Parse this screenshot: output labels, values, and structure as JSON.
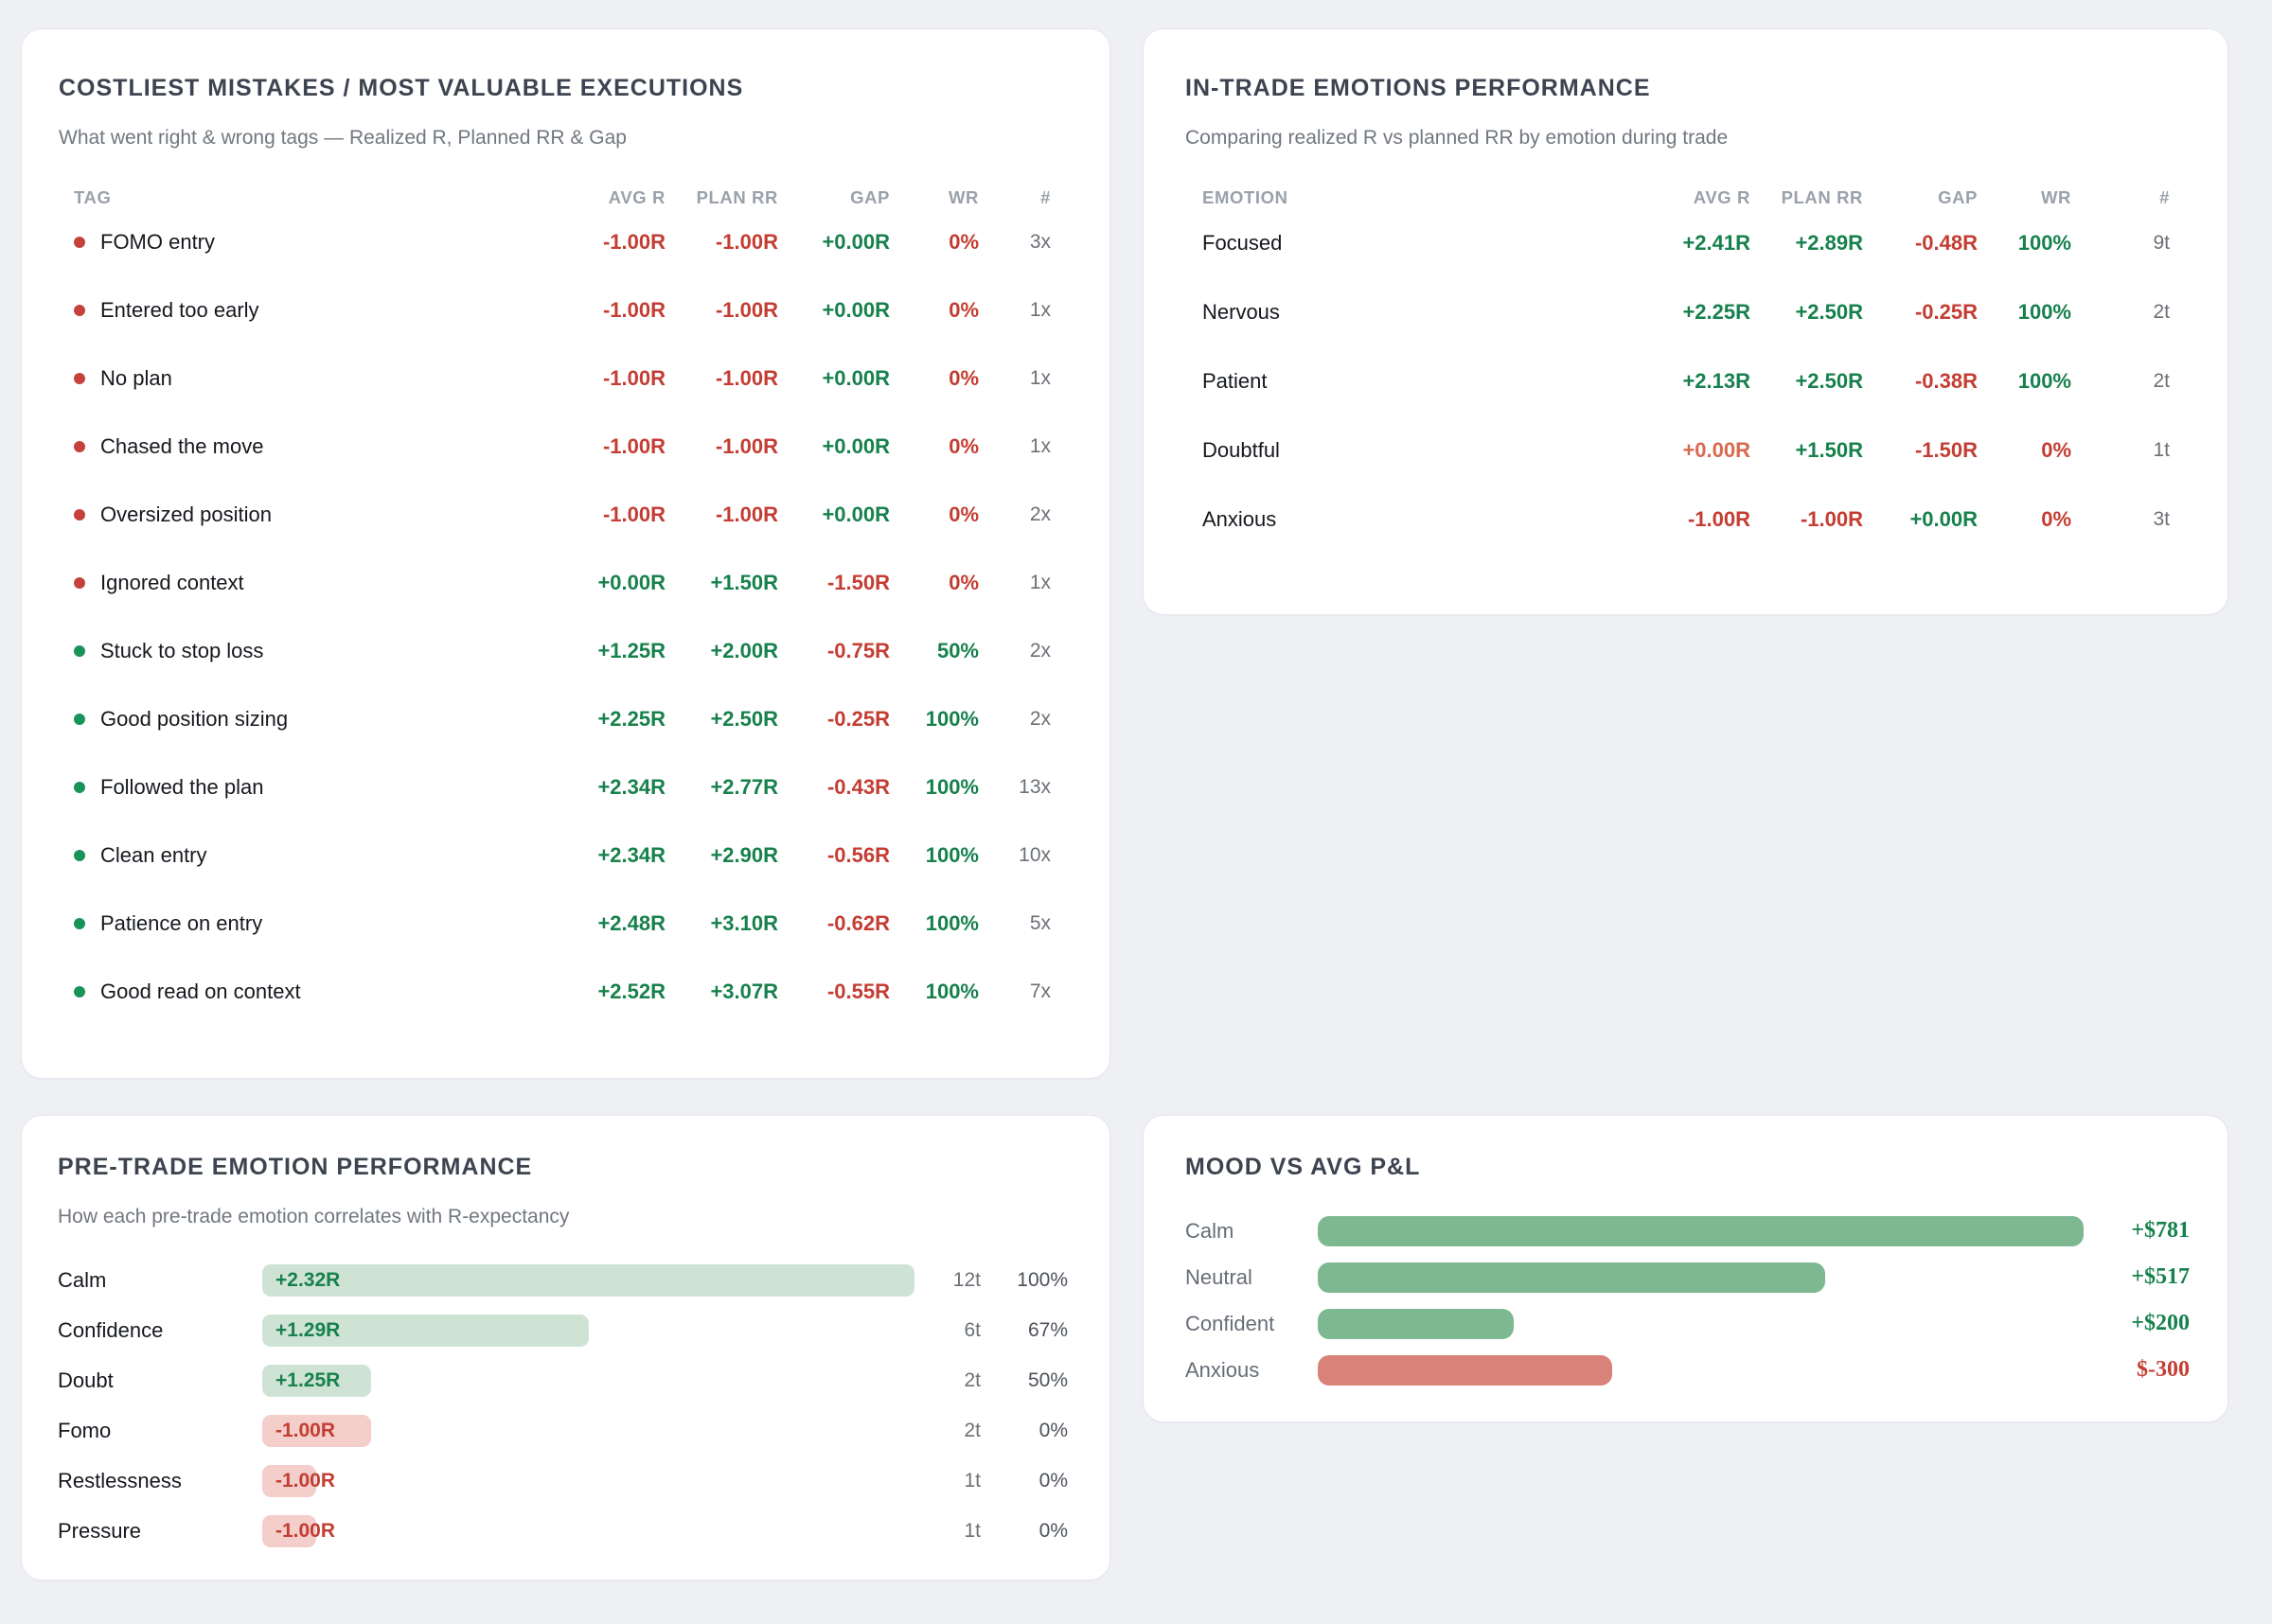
{
  "colors": {
    "page_bg": "#eef0f4",
    "panel_bg": "#ffffff",
    "red": "#c43d32",
    "green": "#17814c",
    "soft_red": "#d9694f",
    "red_dot": "#c5423c",
    "green_dot": "#18935a",
    "bar_light_green": "#cfe3d5",
    "bar_light_red": "#f3cecb",
    "bar_green": "#7eb891",
    "bar_red": "#d9827a"
  },
  "panels": {
    "mistakes": {
      "title": "COSTLIEST MISTAKES / MOST VALUABLE EXECUTIONS",
      "subtitle": "What went right & wrong tags — Realized R, Planned RR & Gap",
      "columns": [
        "TAG",
        "AVG R",
        "PLAN RR",
        "GAP",
        "WR",
        "#"
      ],
      "rows": [
        {
          "tag": "FOMO entry",
          "dot": "red",
          "avg": "-1.00R",
          "avg_c": "red",
          "plan": "-1.00R",
          "plan_c": "red",
          "gap": "+0.00R",
          "gap_c": "green",
          "wr": "0%",
          "wr_c": "red",
          "count": "3x"
        },
        {
          "tag": "Entered too early",
          "dot": "red",
          "avg": "-1.00R",
          "avg_c": "red",
          "plan": "-1.00R",
          "plan_c": "red",
          "gap": "+0.00R",
          "gap_c": "green",
          "wr": "0%",
          "wr_c": "red",
          "count": "1x"
        },
        {
          "tag": "No plan",
          "dot": "red",
          "avg": "-1.00R",
          "avg_c": "red",
          "plan": "-1.00R",
          "plan_c": "red",
          "gap": "+0.00R",
          "gap_c": "green",
          "wr": "0%",
          "wr_c": "red",
          "count": "1x"
        },
        {
          "tag": "Chased the move",
          "dot": "red",
          "avg": "-1.00R",
          "avg_c": "red",
          "plan": "-1.00R",
          "plan_c": "red",
          "gap": "+0.00R",
          "gap_c": "green",
          "wr": "0%",
          "wr_c": "red",
          "count": "1x"
        },
        {
          "tag": "Oversized position",
          "dot": "red",
          "avg": "-1.00R",
          "avg_c": "red",
          "plan": "-1.00R",
          "plan_c": "red",
          "gap": "+0.00R",
          "gap_c": "green",
          "wr": "0%",
          "wr_c": "red",
          "count": "2x"
        },
        {
          "tag": "Ignored context",
          "dot": "red",
          "avg": "+0.00R",
          "avg_c": "green",
          "plan": "+1.50R",
          "plan_c": "green",
          "gap": "-1.50R",
          "gap_c": "red",
          "wr": "0%",
          "wr_c": "red",
          "count": "1x"
        },
        {
          "tag": "Stuck to stop loss",
          "dot": "green",
          "avg": "+1.25R",
          "avg_c": "green",
          "plan": "+2.00R",
          "plan_c": "green",
          "gap": "-0.75R",
          "gap_c": "red",
          "wr": "50%",
          "wr_c": "green",
          "count": "2x"
        },
        {
          "tag": "Good position sizing",
          "dot": "green",
          "avg": "+2.25R",
          "avg_c": "green",
          "plan": "+2.50R",
          "plan_c": "green",
          "gap": "-0.25R",
          "gap_c": "red",
          "wr": "100%",
          "wr_c": "green",
          "count": "2x"
        },
        {
          "tag": "Followed the plan",
          "dot": "green",
          "avg": "+2.34R",
          "avg_c": "green",
          "plan": "+2.77R",
          "plan_c": "green",
          "gap": "-0.43R",
          "gap_c": "red",
          "wr": "100%",
          "wr_c": "green",
          "count": "13x"
        },
        {
          "tag": "Clean entry",
          "dot": "green",
          "avg": "+2.34R",
          "avg_c": "green",
          "plan": "+2.90R",
          "plan_c": "green",
          "gap": "-0.56R",
          "gap_c": "red",
          "wr": "100%",
          "wr_c": "green",
          "count": "10x"
        },
        {
          "tag": "Patience on entry",
          "dot": "green",
          "avg": "+2.48R",
          "avg_c": "green",
          "plan": "+3.10R",
          "plan_c": "green",
          "gap": "-0.62R",
          "gap_c": "red",
          "wr": "100%",
          "wr_c": "green",
          "count": "5x"
        },
        {
          "tag": "Good read on context",
          "dot": "green",
          "avg": "+2.52R",
          "avg_c": "green",
          "plan": "+3.07R",
          "plan_c": "green",
          "gap": "-0.55R",
          "gap_c": "red",
          "wr": "100%",
          "wr_c": "green",
          "count": "7x"
        }
      ]
    },
    "emotions": {
      "title": "IN-TRADE EMOTIONS PERFORMANCE",
      "subtitle": "Comparing realized R vs planned RR by emotion during trade",
      "columns": [
        "EMOTION",
        "AVG R",
        "PLAN RR",
        "GAP",
        "WR",
        "#"
      ],
      "rows": [
        {
          "emotion": "Focused",
          "avg": "+2.41R",
          "avg_c": "green",
          "plan": "+2.89R",
          "plan_c": "green",
          "gap": "-0.48R",
          "gap_c": "red",
          "wr": "100%",
          "wr_c": "green",
          "count": "9t"
        },
        {
          "emotion": "Nervous",
          "avg": "+2.25R",
          "avg_c": "green",
          "plan": "+2.50R",
          "plan_c": "green",
          "gap": "-0.25R",
          "gap_c": "red",
          "wr": "100%",
          "wr_c": "green",
          "count": "2t"
        },
        {
          "emotion": "Patient",
          "avg": "+2.13R",
          "avg_c": "green",
          "plan": "+2.50R",
          "plan_c": "green",
          "gap": "-0.38R",
          "gap_c": "red",
          "wr": "100%",
          "wr_c": "green",
          "count": "2t"
        },
        {
          "emotion": "Doubtful",
          "avg": "+0.00R",
          "avg_c": "softred",
          "plan": "+1.50R",
          "plan_c": "green",
          "gap": "-1.50R",
          "gap_c": "red",
          "wr": "0%",
          "wr_c": "red",
          "count": "1t"
        },
        {
          "emotion": "Anxious",
          "avg": "-1.00R",
          "avg_c": "red",
          "plan": "-1.00R",
          "plan_c": "red",
          "gap": "+0.00R",
          "gap_c": "green",
          "wr": "0%",
          "wr_c": "red",
          "count": "3t"
        }
      ]
    },
    "pretrade": {
      "title": "PRE-TRADE EMOTION PERFORMANCE",
      "subtitle": "How each pre-trade emotion correlates with R-expectancy",
      "rows": [
        {
          "label": "Calm",
          "value": "+2.32R",
          "sentiment": "pos",
          "bar_pct": 100,
          "count": "12t",
          "wr": "100%"
        },
        {
          "label": "Confidence",
          "value": "+1.29R",
          "sentiment": "pos",
          "bar_pct": 50,
          "count": "6t",
          "wr": "67%"
        },
        {
          "label": "Doubt",
          "value": "+1.25R",
          "sentiment": "pos",
          "bar_pct": 16.7,
          "count": "2t",
          "wr": "50%"
        },
        {
          "label": "Fomo",
          "value": "-1.00R",
          "sentiment": "neg",
          "bar_pct": 16.7,
          "count": "2t",
          "wr": "0%"
        },
        {
          "label": "Restlessness",
          "value": "-1.00R",
          "sentiment": "neg",
          "bar_pct": 8.3,
          "count": "1t",
          "wr": "0%"
        },
        {
          "label": "Pressure",
          "value": "-1.00R",
          "sentiment": "neg",
          "bar_pct": 8.3,
          "count": "1t",
          "wr": "0%"
        }
      ]
    },
    "mood": {
      "title": "MOOD VS AVG P&L",
      "rows": [
        {
          "label": "Calm",
          "value": "+$781",
          "sentiment": "pos",
          "bar_pct": 100
        },
        {
          "label": "Neutral",
          "value": "+$517",
          "sentiment": "pos",
          "bar_pct": 66.2
        },
        {
          "label": "Confident",
          "value": "+$200",
          "sentiment": "pos",
          "bar_pct": 25.6
        },
        {
          "label": "Anxious",
          "value": "$-300",
          "sentiment": "neg",
          "bar_pct": 38.4
        }
      ]
    }
  },
  "chart_data": [
    {
      "type": "table",
      "title": "COSTLIEST MISTAKES / MOST VALUABLE EXECUTIONS",
      "columns": [
        "TAG",
        "AVG R",
        "PLAN RR",
        "GAP",
        "WR",
        "#"
      ],
      "rows": [
        [
          "FOMO entry",
          -1.0,
          -1.0,
          0.0,
          "0%",
          "3x"
        ],
        [
          "Entered too early",
          -1.0,
          -1.0,
          0.0,
          "0%",
          "1x"
        ],
        [
          "No plan",
          -1.0,
          -1.0,
          0.0,
          "0%",
          "1x"
        ],
        [
          "Chased the move",
          -1.0,
          -1.0,
          0.0,
          "0%",
          "1x"
        ],
        [
          "Oversized position",
          -1.0,
          -1.0,
          0.0,
          "0%",
          "2x"
        ],
        [
          "Ignored context",
          0.0,
          1.5,
          -1.5,
          "0%",
          "1x"
        ],
        [
          "Stuck to stop loss",
          1.25,
          2.0,
          -0.75,
          "50%",
          "2x"
        ],
        [
          "Good position sizing",
          2.25,
          2.5,
          -0.25,
          "100%",
          "2x"
        ],
        [
          "Followed the plan",
          2.34,
          2.77,
          -0.43,
          "100%",
          "13x"
        ],
        [
          "Clean entry",
          2.34,
          2.9,
          -0.56,
          "100%",
          "10x"
        ],
        [
          "Patience on entry",
          2.48,
          3.1,
          -0.62,
          "100%",
          "5x"
        ],
        [
          "Good read on context",
          2.52,
          3.07,
          -0.55,
          "100%",
          "7x"
        ]
      ]
    },
    {
      "type": "table",
      "title": "IN-TRADE EMOTIONS PERFORMANCE",
      "columns": [
        "EMOTION",
        "AVG R",
        "PLAN RR",
        "GAP",
        "WR",
        "#"
      ],
      "rows": [
        [
          "Focused",
          2.41,
          2.89,
          -0.48,
          "100%",
          "9t"
        ],
        [
          "Nervous",
          2.25,
          2.5,
          -0.25,
          "100%",
          "2t"
        ],
        [
          "Patient",
          2.13,
          2.5,
          -0.38,
          "100%",
          "2t"
        ],
        [
          "Doubtful",
          0.0,
          1.5,
          -1.5,
          "0%",
          "1t"
        ],
        [
          "Anxious",
          -1.0,
          -1.0,
          0.0,
          "0%",
          "3t"
        ]
      ]
    },
    {
      "type": "bar",
      "title": "PRE-TRADE EMOTION PERFORMANCE",
      "categories": [
        "Calm",
        "Confidence",
        "Doubt",
        "Fomo",
        "Restlessness",
        "Pressure"
      ],
      "values": [
        2.32,
        1.29,
        1.25,
        -1.0,
        -1.0,
        -1.0
      ],
      "counts": [
        12,
        6,
        2,
        2,
        1,
        1
      ],
      "win_rates": [
        "100%",
        "67%",
        "50%",
        "0%",
        "0%",
        "0%"
      ],
      "note": "bar width proportional to trade count (max 12t)",
      "xlabel": "",
      "ylabel": "R-expectancy"
    },
    {
      "type": "bar",
      "title": "MOOD VS AVG P&L",
      "categories": [
        "Calm",
        "Neutral",
        "Confident",
        "Anxious"
      ],
      "values": [
        781,
        517,
        200,
        -300
      ],
      "note": "bar width proportional to |avg P&L|",
      "xlabel": "",
      "ylabel": "Avg P&L ($)"
    }
  ]
}
